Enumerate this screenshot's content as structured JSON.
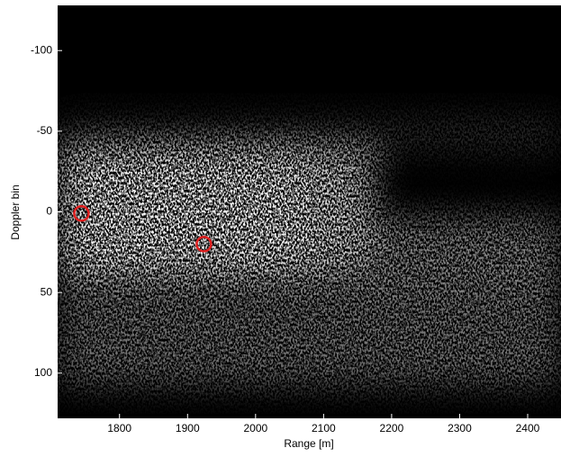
{
  "chart_data": {
    "type": "scatter",
    "xlabel": "Range [m]",
    "ylabel": "Doppler bin",
    "xlim": [
      1709,
      2449
    ],
    "ylim": [
      -128,
      128
    ],
    "y_inverted": true,
    "xticks": [
      1800,
      1900,
      2000,
      2100,
      2200,
      2300,
      2400
    ],
    "yticks": [
      -100,
      -50,
      0,
      50,
      100
    ],
    "series": [
      {
        "color": "#e02020",
        "x": [
          1744,
          1924
        ],
        "values": [
          1,
          20
        ]
      }
    ]
  }
}
